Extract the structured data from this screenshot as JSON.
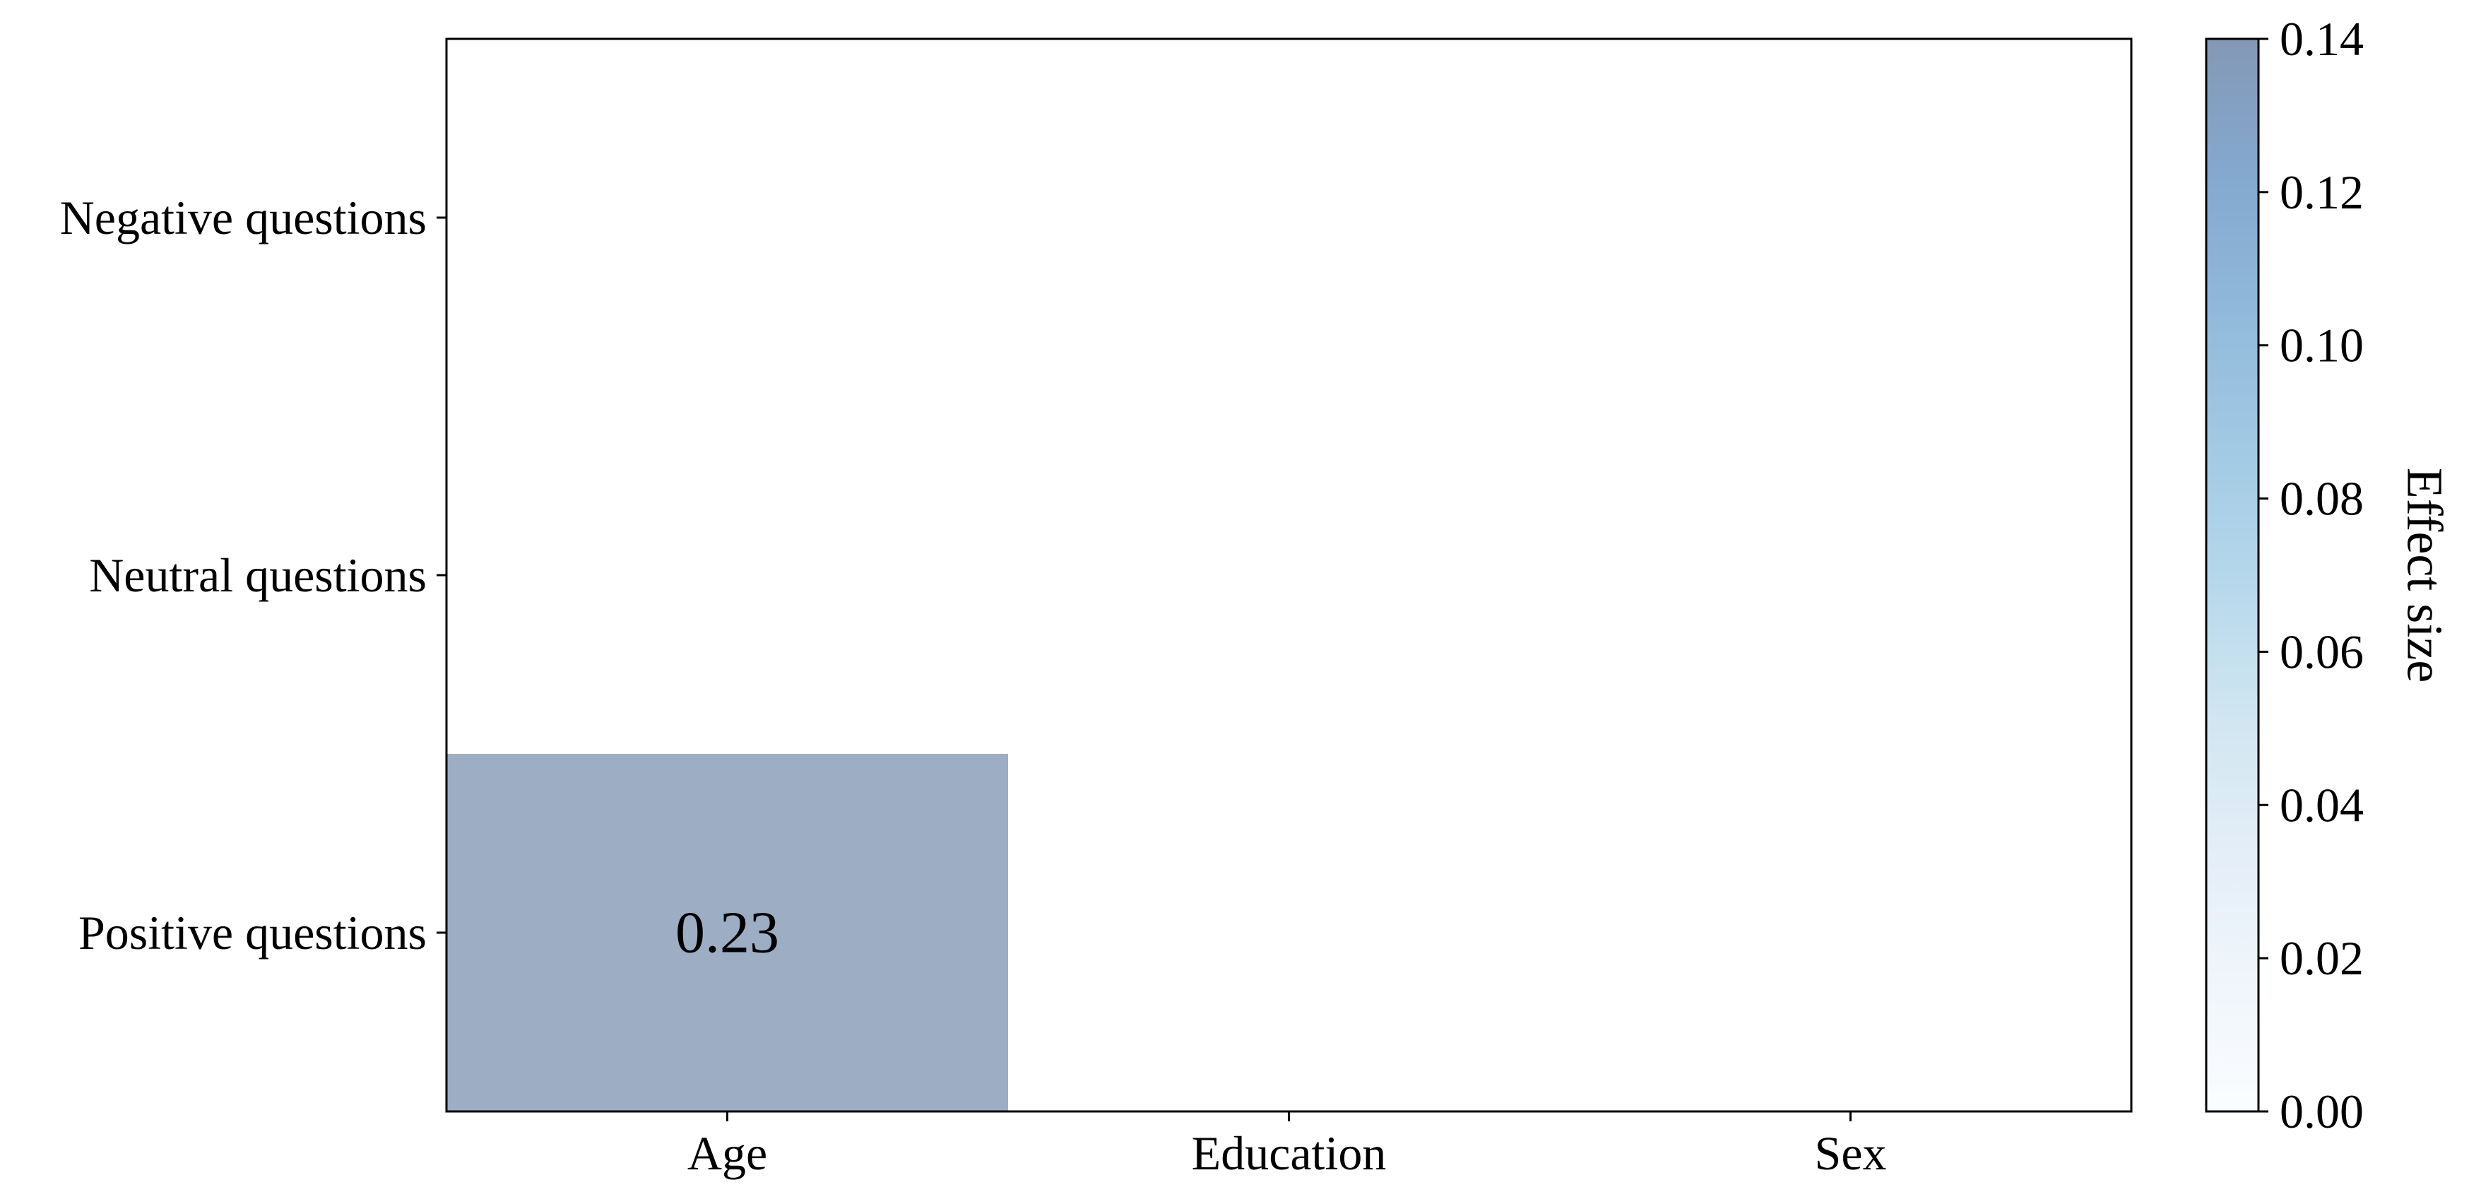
{
  "chart_data": {
    "type": "heatmap",
    "title": "",
    "x_categories": [
      "Age",
      "Education",
      "Sex"
    ],
    "y_categories": [
      "Negative questions",
      "Neutral questions",
      "Positive questions"
    ],
    "values": [
      [
        null,
        null,
        null
      ],
      [
        null,
        null,
        null
      ],
      [
        0.23,
        null,
        null
      ]
    ],
    "cell_labels": [
      [
        "",
        "",
        ""
      ],
      [
        "",
        "",
        ""
      ],
      [
        "0.23",
        "",
        ""
      ]
    ],
    "colorbar": {
      "label": "Effect size",
      "range": [
        0,
        0.14
      ],
      "ticks": [
        0.0,
        0.02,
        0.04,
        0.06,
        0.08,
        0.1,
        0.12,
        0.14
      ],
      "tick_labels": [
        "0.00",
        "0.02",
        "0.04",
        "0.06",
        "0.08",
        "0.10",
        "0.12",
        "0.14"
      ],
      "colormap": "Blues",
      "alpha": 0.5,
      "over_color": "#9dadc4",
      "stops": [
        "#f7fbff",
        "#deebf7",
        "#c6dbef",
        "#9ecae1",
        "#6baed6",
        "#4292c6",
        "#2171b5",
        "#08519c",
        "#08306b"
      ]
    },
    "grid": false,
    "legend": "right"
  }
}
